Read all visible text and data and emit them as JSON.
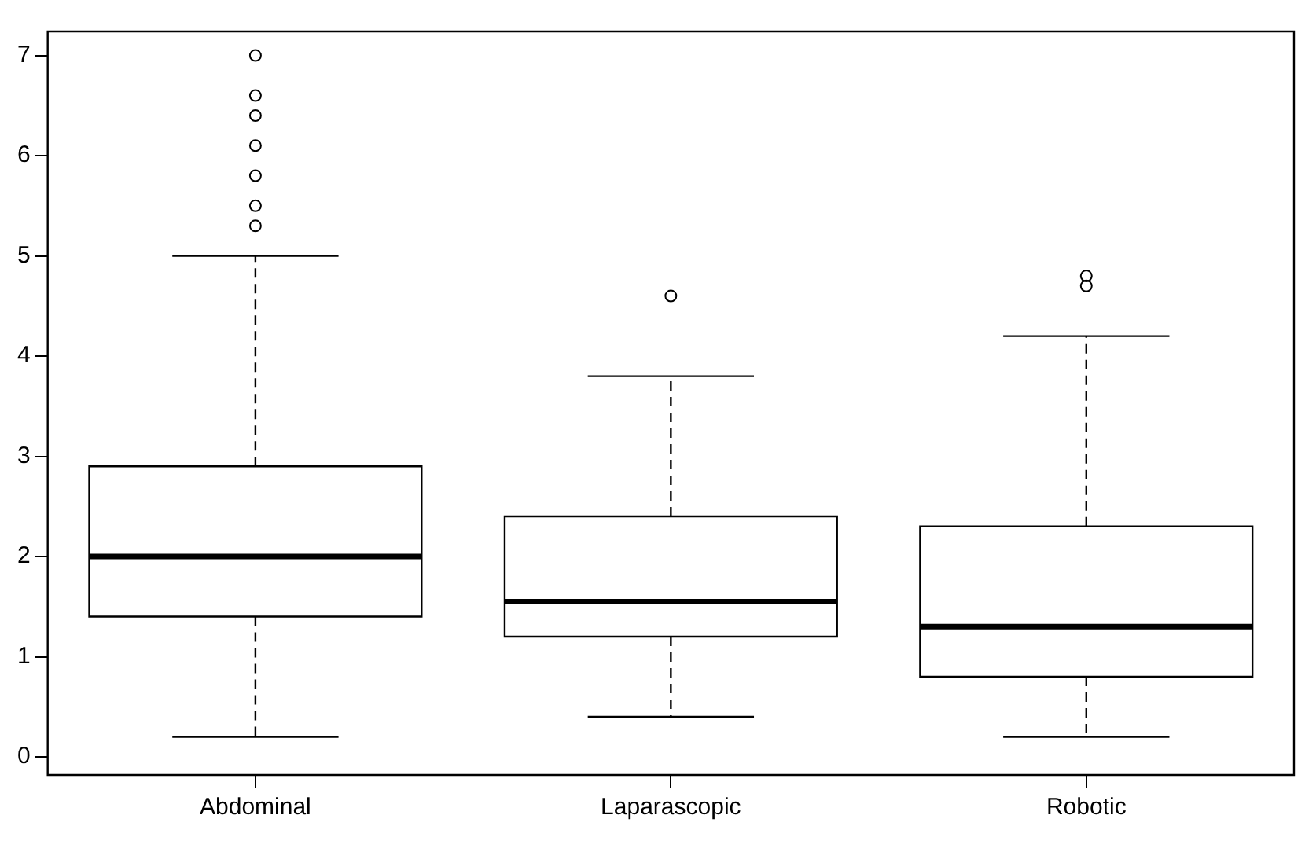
{
  "chart_data": {
    "type": "box",
    "categories": [
      "Abdominal",
      "Laparascopic",
      "Robotic"
    ],
    "boxes": [
      {
        "low": 0.2,
        "q1": 1.4,
        "median": 2.0,
        "q3": 2.9,
        "high": 5.0,
        "outliers": [
          5.3,
          5.5,
          5.8,
          6.1,
          6.4,
          6.6,
          7.0
        ]
      },
      {
        "low": 0.4,
        "q1": 1.2,
        "median": 1.55,
        "q3": 2.4,
        "high": 3.8,
        "outliers": [
          4.6
        ]
      },
      {
        "low": 0.2,
        "q1": 0.8,
        "median": 1.3,
        "q3": 2.3,
        "high": 4.2,
        "outliers": [
          4.7,
          4.8
        ]
      }
    ],
    "color": "#ffffff",
    "ylim": [
      -0.18,
      7.24
    ],
    "yticks": [
      0,
      1,
      2,
      3,
      4,
      5,
      6,
      7
    ],
    "grid": false,
    "legend": false,
    "marker": "circle"
  }
}
